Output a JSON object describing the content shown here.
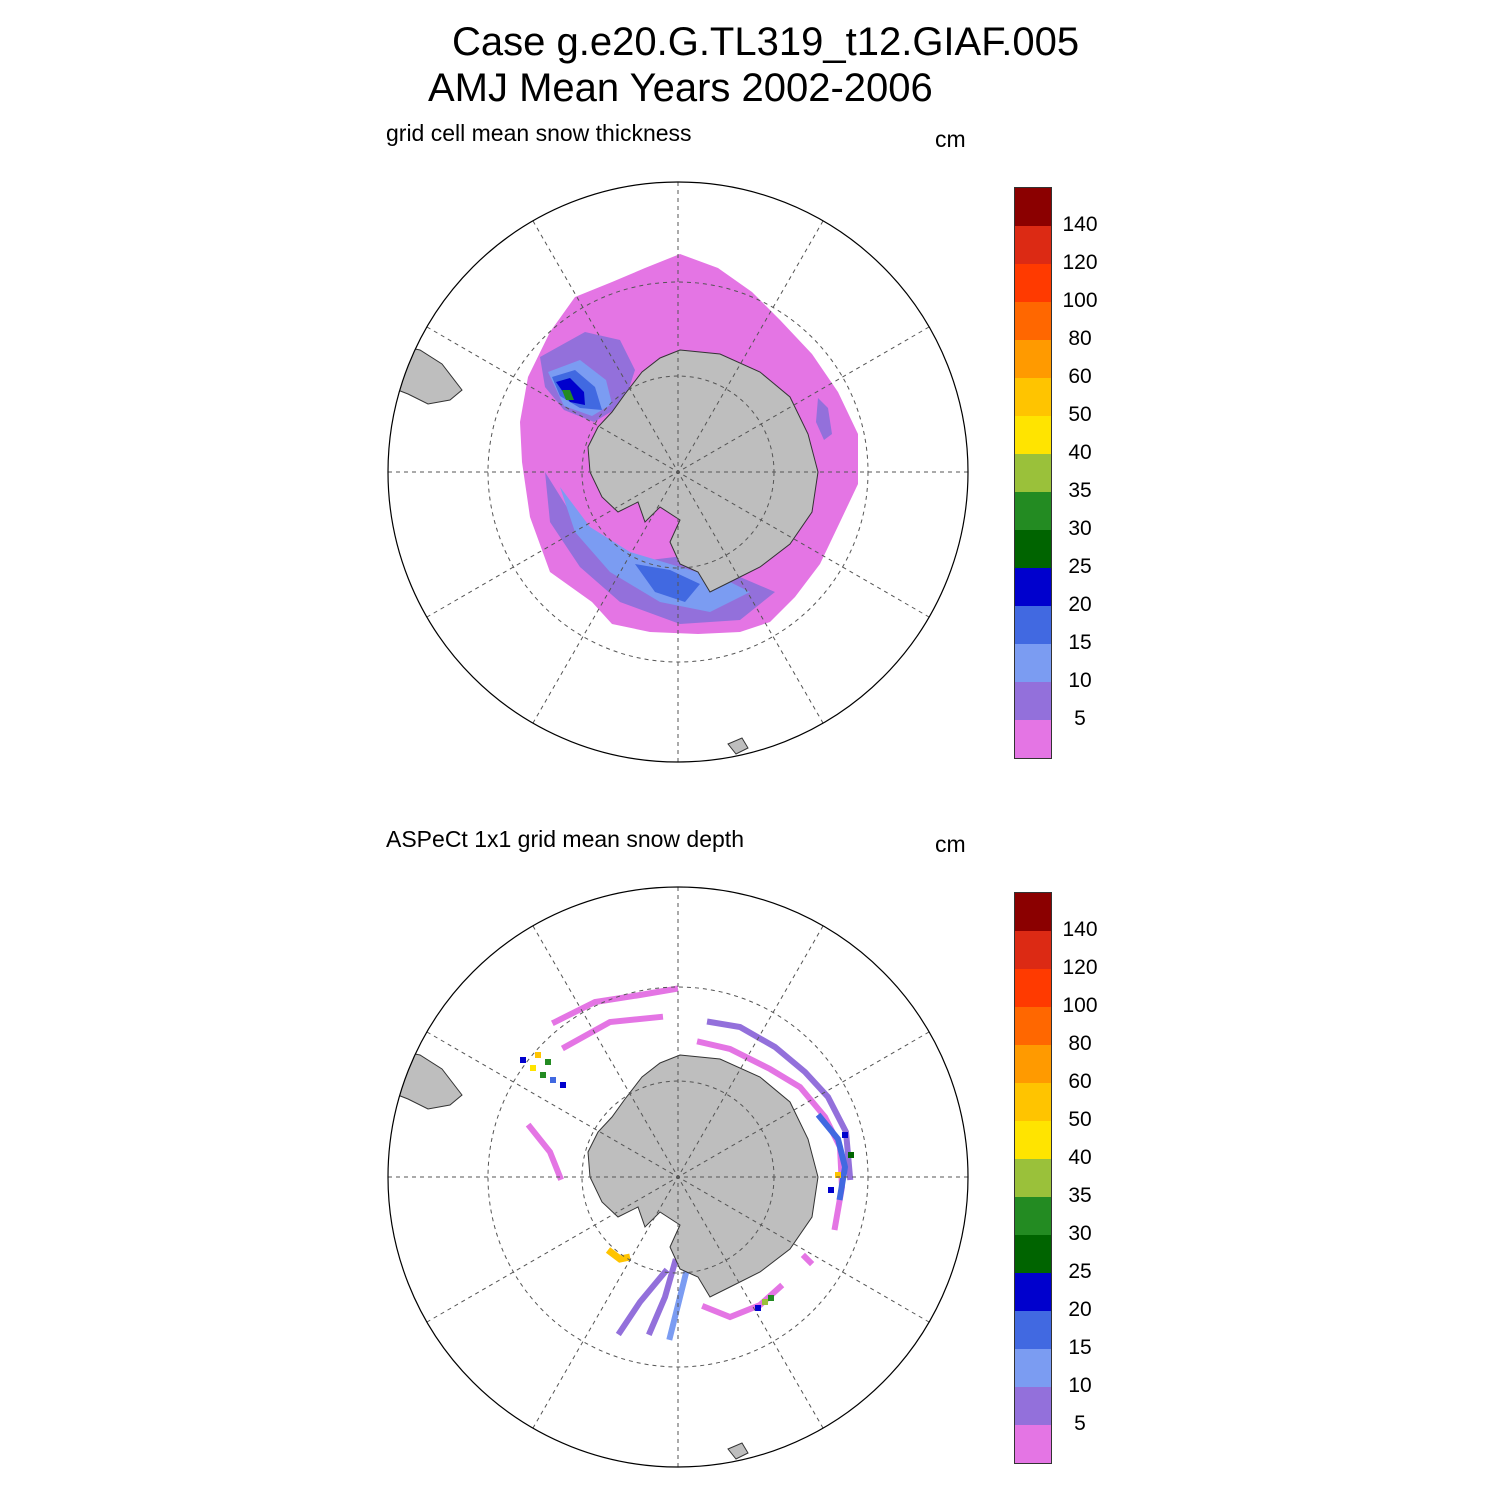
{
  "header": {
    "line1": "Case g.e20.G.TL319_t12.GIAF.005",
    "line2": "AMJ Mean   Years 2002-2006"
  },
  "panels": [
    {
      "title": "grid cell mean snow thickness",
      "unit": "cm"
    },
    {
      "title": "ASPeCt 1x1 grid mean snow depth",
      "unit": "cm"
    }
  ],
  "colorbar": {
    "labels": [
      "140",
      "120",
      "100",
      "80",
      "60",
      "50",
      "40",
      "35",
      "30",
      "25",
      "20",
      "15",
      "10",
      "5"
    ],
    "colors": [
      "#8b0000",
      "#dc2a14",
      "#ff3a00",
      "#ff6700",
      "#ff9a00",
      "#ffc400",
      "#ffe400",
      "#9ac13a",
      "#238b22",
      "#006400",
      "#0000cd",
      "#4169e1",
      "#7b9cf2",
      "#9370db",
      "#e475e4"
    ]
  },
  "colors": {
    "land": "#bebebe",
    "coast": "#333333",
    "grid": "#555555",
    "ice": "#e475e4"
  }
}
